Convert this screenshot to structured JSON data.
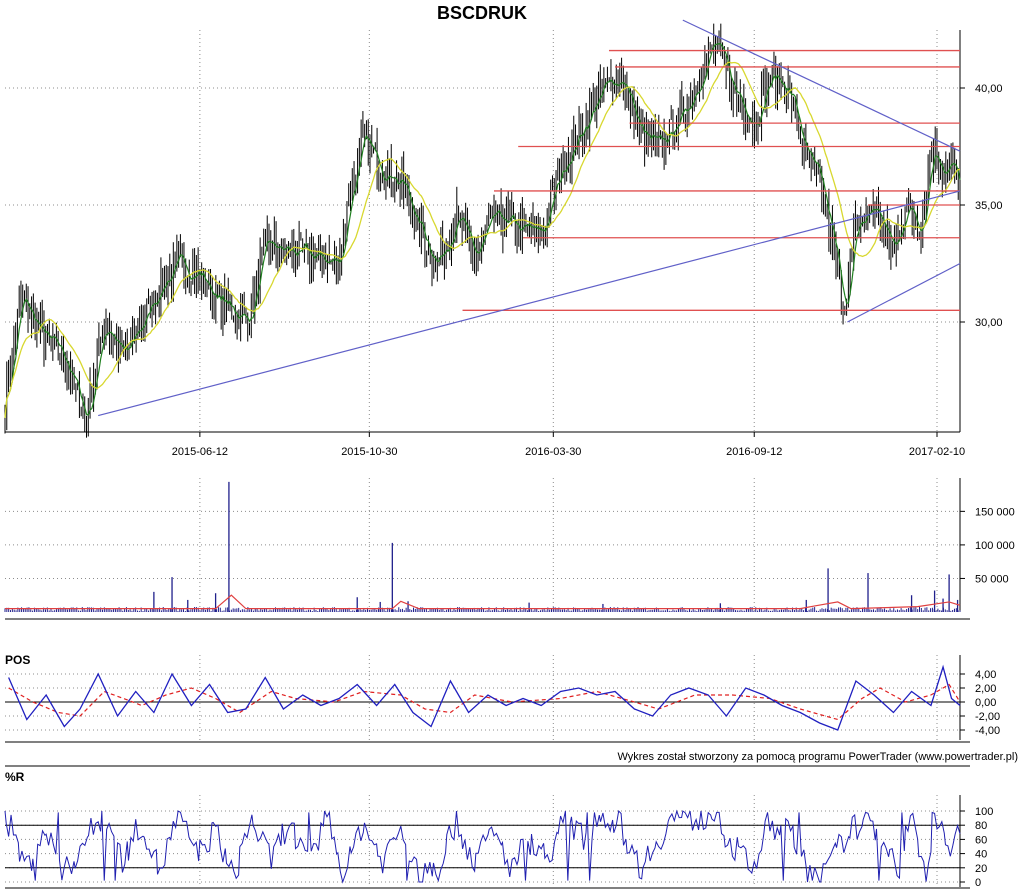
{
  "title": "BSCDRUK",
  "credit": "Wykres został stworzony za pomocą programu PowerTrader (www.powertrader.pl)",
  "colors": {
    "candle": "#000000",
    "ma_fast": "#208020",
    "ma_slow": "#d8d830",
    "support": "#e05050",
    "trend": "#6060c8",
    "volume": "#20208c",
    "volume_avg": "#e04040",
    "pos": "#2020c0",
    "pos_signal": "#e02020",
    "williams": "#2020b0",
    "baseline": "#000000"
  },
  "chart_data": [
    {
      "type": "candlestick",
      "name": "price",
      "title": "BSCDRUK",
      "x_ticks": [
        "2015-06-12",
        "2015-10-30",
        "2016-03-30",
        "2016-09-12",
        "2017-02-10"
      ],
      "y_ticks": [
        "30,00",
        "35,00",
        "40,00"
      ],
      "ylim": [
        25.0,
        43.0
      ],
      "grid": true,
      "close_path": [
        [
          "2015-01-02",
          26.5
        ],
        [
          "2015-01-15",
          31.0
        ],
        [
          "2015-02-01",
          29.5
        ],
        [
          "2015-02-20",
          28.5
        ],
        [
          "2015-03-10",
          25.8
        ],
        [
          "2015-03-25",
          30.0
        ],
        [
          "2015-04-10",
          28.5
        ],
        [
          "2015-04-25",
          30.0
        ],
        [
          "2015-05-10",
          31.5
        ],
        [
          "2015-05-25",
          32.5
        ],
        [
          "2015-06-12",
          32.0
        ],
        [
          "2015-06-25",
          31.0
        ],
        [
          "2015-07-10",
          30.5
        ],
        [
          "2015-07-22",
          30.0
        ],
        [
          "2015-08-05",
          33.3
        ],
        [
          "2015-08-25",
          33.0
        ],
        [
          "2015-09-15",
          32.8
        ],
        [
          "2015-10-05",
          32.5
        ],
        [
          "2015-10-12",
          35.0
        ],
        [
          "2015-10-25",
          37.8
        ],
        [
          "2015-11-10",
          36.5
        ],
        [
          "2015-11-25",
          36.0
        ],
        [
          "2015-12-10",
          34.0
        ],
        [
          "2015-12-25",
          32.5
        ],
        [
          "2016-01-10",
          34.5
        ],
        [
          "2016-01-25",
          32.8
        ],
        [
          "2016-02-10",
          34.5
        ],
        [
          "2016-03-01",
          34.0
        ],
        [
          "2016-03-20",
          33.8
        ],
        [
          "2016-04-05",
          36.5
        ],
        [
          "2016-04-20",
          38.0
        ],
        [
          "2016-05-10",
          40.0
        ],
        [
          "2016-05-25",
          40.5
        ],
        [
          "2016-06-10",
          38.0
        ],
        [
          "2016-06-25",
          37.5
        ],
        [
          "2016-07-10",
          38.5
        ],
        [
          "2016-07-25",
          40.0
        ],
        [
          "2016-08-10",
          42.0
        ],
        [
          "2016-08-25",
          40.0
        ],
        [
          "2016-09-12",
          38.5
        ],
        [
          "2016-09-25",
          40.5
        ],
        [
          "2016-10-10",
          40.0
        ],
        [
          "2016-10-25",
          37.0
        ],
        [
          "2016-11-05",
          36.0
        ],
        [
          "2016-11-15",
          33.5
        ],
        [
          "2016-11-25",
          30.5
        ],
        [
          "2016-12-05",
          34.0
        ],
        [
          "2016-12-20",
          35.0
        ],
        [
          "2017-01-05",
          33.0
        ],
        [
          "2017-01-15",
          35.0
        ],
        [
          "2017-01-28",
          34.0
        ],
        [
          "2017-02-05",
          37.5
        ],
        [
          "2017-02-15",
          36.5
        ],
        [
          "2017-02-22",
          36.8
        ],
        [
          "2017-02-28",
          35.5
        ]
      ],
      "support_levels": [
        41.6,
        40.9,
        38.5,
        37.5,
        35.6,
        35.0,
        33.6,
        30.5
      ],
      "trendlines": [
        {
          "from": [
            "2015-03-20",
            26.0
          ],
          "to": [
            "2017-03-01",
            35.6
          ]
        },
        {
          "from": [
            "2016-07-15",
            42.9
          ],
          "to": [
            "2017-03-01",
            37.3
          ]
        },
        {
          "from": [
            "2016-11-28",
            30.0
          ],
          "to": [
            "2017-03-01",
            32.5
          ]
        }
      ]
    },
    {
      "type": "bar",
      "name": "volume",
      "y_ticks": [
        "50 000",
        "100 000",
        "150 000"
      ],
      "ylim": [
        0,
        200000
      ],
      "spikes": [
        [
          "2015-05-05",
          30000
        ],
        [
          "2015-05-20",
          52000
        ],
        [
          "2015-06-02",
          18000
        ],
        [
          "2015-06-25",
          28000
        ],
        [
          "2015-07-06",
          194000
        ],
        [
          "2015-10-20",
          22000
        ],
        [
          "2015-11-08",
          15000
        ],
        [
          "2015-11-18",
          103000
        ],
        [
          "2015-12-01",
          16000
        ],
        [
          "2016-03-10",
          14000
        ],
        [
          "2016-05-10",
          12000
        ],
        [
          "2016-08-15",
          13000
        ],
        [
          "2016-10-25",
          18000
        ],
        [
          "2016-11-12",
          65000
        ],
        [
          "2016-12-15",
          58000
        ],
        [
          "2017-01-20",
          25000
        ],
        [
          "2017-02-08",
          32000
        ],
        [
          "2017-02-15",
          20000
        ],
        [
          "2017-02-20",
          56000
        ],
        [
          "2017-02-27",
          18000
        ]
      ],
      "avg_path": [
        [
          "2015-01-02",
          5000
        ],
        [
          "2015-06-25",
          5000
        ],
        [
          "2015-07-08",
          25000
        ],
        [
          "2015-07-20",
          5000
        ],
        [
          "2015-11-18",
          5000
        ],
        [
          "2015-11-25",
          16000
        ],
        [
          "2015-12-10",
          5000
        ],
        [
          "2016-10-20",
          5000
        ],
        [
          "2016-11-01",
          9000
        ],
        [
          "2016-11-20",
          15000
        ],
        [
          "2016-12-01",
          5000
        ],
        [
          "2017-01-25",
          8000
        ],
        [
          "2017-02-20",
          15000
        ],
        [
          "2017-03-01",
          10000
        ]
      ]
    },
    {
      "type": "line",
      "name": "POS",
      "label": "POS",
      "y_ticks": [
        "4,00",
        "2,00",
        "0,00",
        "-2,00",
        "-4,00"
      ],
      "ylim": [
        -5.0,
        5.0
      ],
      "series_values": [
        [
          "2015-01-05",
          3.5
        ],
        [
          "2015-01-20",
          -2.5
        ],
        [
          "2015-02-05",
          1.0
        ],
        [
          "2015-02-20",
          -3.5
        ],
        [
          "2015-03-05",
          -1.0
        ],
        [
          "2015-03-20",
          4.0
        ],
        [
          "2015-04-05",
          -2.0
        ],
        [
          "2015-04-20",
          1.5
        ],
        [
          "2015-05-05",
          -1.5
        ],
        [
          "2015-05-20",
          4.0
        ],
        [
          "2015-06-05",
          -0.5
        ],
        [
          "2015-06-20",
          2.5
        ],
        [
          "2015-07-05",
          -1.5
        ],
        [
          "2015-07-20",
          -1.0
        ],
        [
          "2015-08-05",
          3.5
        ],
        [
          "2015-08-20",
          -1.0
        ],
        [
          "2015-09-05",
          1.0
        ],
        [
          "2015-09-20",
          -0.5
        ],
        [
          "2015-10-05",
          0.5
        ],
        [
          "2015-10-20",
          2.5
        ],
        [
          "2015-11-05",
          -0.5
        ],
        [
          "2015-11-20",
          2.5
        ],
        [
          "2015-12-05",
          -1.5
        ],
        [
          "2015-12-20",
          -3.5
        ],
        [
          "2016-01-05",
          3.0
        ],
        [
          "2016-01-20",
          -1.5
        ],
        [
          "2016-02-05",
          1.0
        ],
        [
          "2016-02-20",
          -0.5
        ],
        [
          "2016-03-05",
          0.5
        ],
        [
          "2016-03-20",
          -0.5
        ],
        [
          "2016-04-05",
          1.5
        ],
        [
          "2016-04-20",
          2.0
        ],
        [
          "2016-05-05",
          1.0
        ],
        [
          "2016-05-20",
          1.5
        ],
        [
          "2016-06-05",
          -1.0
        ],
        [
          "2016-06-20",
          -2.0
        ],
        [
          "2016-07-05",
          1.0
        ],
        [
          "2016-07-20",
          2.0
        ],
        [
          "2016-08-05",
          1.0
        ],
        [
          "2016-08-20",
          -2.0
        ],
        [
          "2016-09-05",
          2.0
        ],
        [
          "2016-09-20",
          1.0
        ],
        [
          "2016-10-05",
          -0.5
        ],
        [
          "2016-10-20",
          -1.5
        ],
        [
          "2016-11-05",
          -3.0
        ],
        [
          "2016-11-20",
          -4.0
        ],
        [
          "2016-12-05",
          3.0
        ],
        [
          "2016-12-20",
          1.0
        ],
        [
          "2017-01-05",
          -1.5
        ],
        [
          "2017-01-20",
          1.5
        ],
        [
          "2017-02-05",
          -0.5
        ],
        [
          "2017-02-15",
          5.0
        ],
        [
          "2017-02-22",
          0.5
        ],
        [
          "2017-03-01",
          -0.5
        ]
      ],
      "signal_values": [
        [
          "2015-01-05",
          2.0
        ],
        [
          "2015-01-25",
          0.0
        ],
        [
          "2015-02-15",
          -1.5
        ],
        [
          "2015-03-05",
          -2.0
        ],
        [
          "2015-03-25",
          1.5
        ],
        [
          "2015-04-10",
          0.5
        ],
        [
          "2015-04-25",
          -0.5
        ],
        [
          "2015-05-15",
          1.0
        ],
        [
          "2015-06-05",
          2.0
        ],
        [
          "2015-06-25",
          0.5
        ],
        [
          "2015-07-15",
          -1.5
        ],
        [
          "2015-08-10",
          1.5
        ],
        [
          "2015-08-30",
          0.5
        ],
        [
          "2015-10-01",
          0.0
        ],
        [
          "2015-10-25",
          1.5
        ],
        [
          "2015-11-25",
          1.0
        ],
        [
          "2015-12-15",
          -1.0
        ],
        [
          "2016-01-05",
          -1.5
        ],
        [
          "2016-01-25",
          1.0
        ],
        [
          "2016-02-25",
          0.0
        ],
        [
          "2016-04-05",
          0.5
        ],
        [
          "2016-05-05",
          1.5
        ],
        [
          "2016-06-05",
          0.0
        ],
        [
          "2016-06-25",
          -1.0
        ],
        [
          "2016-07-25",
          1.0
        ],
        [
          "2016-08-25",
          1.0
        ],
        [
          "2016-09-25",
          0.5
        ],
        [
          "2016-10-20",
          -1.0
        ],
        [
          "2016-11-20",
          -2.5
        ],
        [
          "2016-12-10",
          0.5
        ],
        [
          "2016-12-25",
          2.0
        ],
        [
          "2017-01-15",
          0.0
        ],
        [
          "2017-02-05",
          1.0
        ],
        [
          "2017-02-20",
          2.5
        ],
        [
          "2017-03-01",
          0.0
        ]
      ]
    },
    {
      "type": "line",
      "name": "%R",
      "label": "%R",
      "y_ticks": [
        "100",
        "80",
        "60",
        "40",
        "20",
        "0"
      ],
      "ylim": [
        0,
        100
      ],
      "reference_lines": [
        80,
        20
      ],
      "values_path": [
        [
          "2015-01-03",
          95
        ],
        [
          "2015-01-20",
          20
        ],
        [
          "2015-02-05",
          75
        ],
        [
          "2015-02-20",
          10
        ],
        [
          "2015-03-10",
          60
        ],
        [
          "2015-03-25",
          95
        ],
        [
          "2015-04-10",
          30
        ],
        [
          "2015-04-25",
          85
        ],
        [
          "2015-05-10",
          15
        ],
        [
          "2015-05-25",
          90
        ],
        [
          "2015-06-12",
          40
        ],
        [
          "2015-06-25",
          75
        ],
        [
          "2015-07-10",
          5
        ],
        [
          "2015-07-25",
          90
        ],
        [
          "2015-08-10",
          30
        ],
        [
          "2015-08-25",
          85
        ],
        [
          "2015-09-10",
          20
        ],
        [
          "2015-09-25",
          90
        ],
        [
          "2015-10-10",
          10
        ],
        [
          "2015-10-25",
          85
        ],
        [
          "2015-11-10",
          30
        ],
        [
          "2015-11-25",
          75
        ],
        [
          "2015-12-10",
          5
        ],
        [
          "2015-12-25",
          20
        ],
        [
          "2016-01-10",
          85
        ],
        [
          "2016-01-25",
          30
        ],
        [
          "2016-02-10",
          70
        ],
        [
          "2016-02-25",
          20
        ],
        [
          "2016-03-10",
          60
        ],
        [
          "2016-03-25",
          35
        ],
        [
          "2016-04-10",
          90
        ],
        [
          "2016-04-25",
          60
        ],
        [
          "2016-05-10",
          95
        ],
        [
          "2016-05-25",
          80
        ],
        [
          "2016-06-10",
          20
        ],
        [
          "2016-06-25",
          60
        ],
        [
          "2016-07-10",
          95
        ],
        [
          "2016-07-25",
          85
        ],
        [
          "2016-08-10",
          100
        ],
        [
          "2016-08-25",
          50
        ],
        [
          "2016-09-12",
          20
        ],
        [
          "2016-09-25",
          80
        ],
        [
          "2016-10-10",
          75
        ],
        [
          "2016-10-25",
          20
        ],
        [
          "2016-11-10",
          10
        ],
        [
          "2016-11-25",
          60
        ],
        [
          "2016-12-10",
          85
        ],
        [
          "2016-12-25",
          70
        ],
        [
          "2017-01-10",
          20
        ],
        [
          "2017-01-20",
          90
        ],
        [
          "2017-02-01",
          5
        ],
        [
          "2017-02-10",
          95
        ],
        [
          "2017-02-20",
          40
        ],
        [
          "2017-03-01",
          85
        ]
      ]
    }
  ]
}
